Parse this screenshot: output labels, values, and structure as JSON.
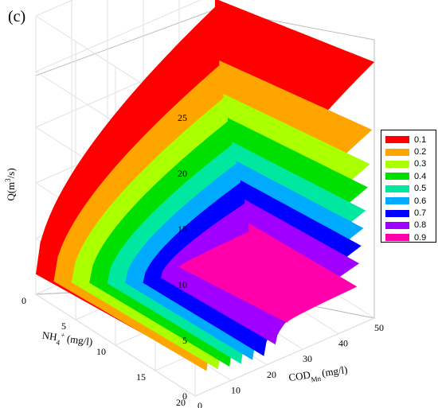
{
  "panel_label": "(c)",
  "chart_data": {
    "type": "surface3d",
    "title": "",
    "xlabel_main": "COD",
    "xlabel_sub": "Mn",
    "xlabel_unit": "(mg/l)",
    "ylabel_main": "NH",
    "ylabel_sub": "4",
    "ylabel_sup": "+",
    "ylabel_unit": "(mg/l)",
    "zlabel_main": "Q(m",
    "zlabel_sup": "3",
    "zlabel_unit": "/s)",
    "x_ticks": [
      "0",
      "10",
      "20",
      "30",
      "40",
      "50"
    ],
    "y_ticks": [
      "0",
      "5",
      "10",
      "15",
      "20"
    ],
    "z_ticks": [
      "0",
      "5",
      "10",
      "15",
      "20",
      "25"
    ],
    "xlim": [
      0,
      50
    ],
    "ylim": [
      0,
      20
    ],
    "zlim": [
      0,
      25
    ],
    "grid": true,
    "legend_position": "right",
    "series": [
      {
        "name": "0.1",
        "color": "#ff0000",
        "z": [
          3,
          23
        ]
      },
      {
        "name": "0.2",
        "color": "#ffa500",
        "z": [
          1.8,
          17
        ]
      },
      {
        "name": "0.3",
        "color": "#aaff00",
        "z": [
          1.5,
          14
        ]
      },
      {
        "name": "0.4",
        "color": "#00e000",
        "z": [
          1.3,
          12
        ]
      },
      {
        "name": "0.5",
        "color": "#00e8a0",
        "z": [
          1.1,
          10
        ]
      },
      {
        "name": "0.6",
        "color": "#00aaff",
        "z": [
          1.0,
          8.5
        ]
      },
      {
        "name": "0.7",
        "color": "#0000ff",
        "z": [
          0.9,
          7
        ]
      },
      {
        "name": "0.8",
        "color": "#a000ff",
        "z": [
          1.5,
          5.5
        ]
      },
      {
        "name": "0.9",
        "color": "#ff00aa",
        "z": [
          3,
          3.5
        ]
      }
    ]
  }
}
